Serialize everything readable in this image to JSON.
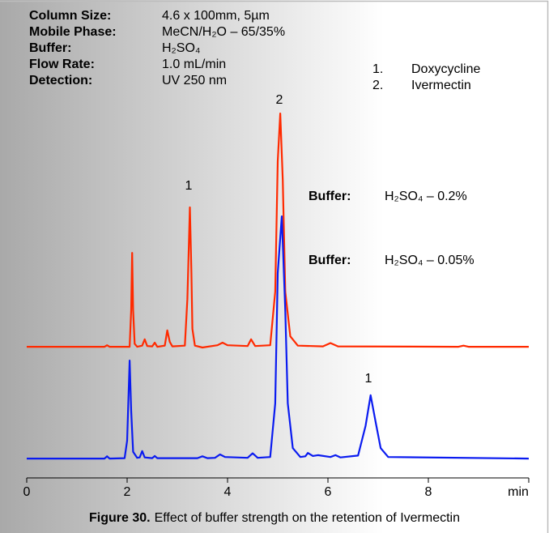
{
  "chart_data": {
    "type": "line",
    "conditions": [
      {
        "label": "Column Size:",
        "value": "4.6 x 100mm, 5µm"
      },
      {
        "label": "Mobile Phase:",
        "value": "MeCN/H₂O – 65/35%"
      },
      {
        "label": "Buffer:",
        "value": "H₂SO₄"
      },
      {
        "label": "Flow Rate:",
        "value": "1.0 mL/min"
      },
      {
        "label": "Detection:",
        "value": "UV 250 nm"
      }
    ],
    "peaks": [
      {
        "number": "1.",
        "name": "Doxycycline"
      },
      {
        "number": "2.",
        "name": "Ivermectin"
      }
    ],
    "peak_labels": [
      "1",
      "2",
      "1"
    ],
    "legend_title": "Buffer:",
    "x_label": "min",
    "xlim": [
      0,
      10
    ],
    "xticks": [
      0,
      2,
      4,
      6,
      8
    ],
    "ylim": [
      0,
      100
    ],
    "series": [
      {
        "name": "H₂SO₄ – 0.2%",
        "color": "#ff2a00",
        "x": [
          0,
          1.55,
          1.6,
          1.65,
          2.05,
          2.08,
          2.1,
          2.12,
          2.15,
          2.2,
          2.3,
          2.35,
          2.4,
          2.5,
          2.55,
          2.6,
          2.75,
          2.8,
          2.85,
          2.9,
          3.15,
          3.2,
          3.25,
          3.28,
          3.3,
          3.35,
          3.5,
          3.8,
          3.9,
          4.0,
          4.4,
          4.47,
          4.55,
          4.85,
          4.95,
          5.0,
          5.05,
          5.1,
          5.15,
          5.25,
          5.4,
          5.9,
          6.05,
          6.2,
          8.6,
          8.7,
          8.8,
          10
        ],
        "values": [
          35.2,
          35.2,
          35.6,
          35.2,
          35.2,
          45,
          60.4,
          45,
          36,
          35.2,
          35.5,
          37.2,
          35.4,
          35.3,
          36.3,
          35.2,
          35.5,
          39.6,
          36.5,
          35.3,
          35.5,
          48,
          72.6,
          55,
          40,
          35.5,
          35.0,
          35.6,
          36.3,
          35.6,
          35.4,
          37.2,
          35.4,
          35.6,
          50,
          85,
          97.8,
          80,
          50,
          38,
          35.5,
          35.3,
          36.2,
          35.3,
          35.2,
          35.5,
          35.2,
          35.2
        ]
      },
      {
        "name": "H₂SO₄ – 0.05%",
        "color": "#0a1bf0",
        "x": [
          0,
          1.55,
          1.6,
          1.65,
          1.95,
          2.0,
          2.05,
          2.08,
          2.12,
          2.2,
          2.25,
          2.3,
          2.35,
          2.5,
          2.55,
          2.6,
          3.4,
          3.5,
          3.6,
          3.75,
          3.85,
          3.95,
          4.4,
          4.5,
          4.6,
          4.85,
          4.95,
          5.0,
          5.08,
          5.15,
          5.2,
          5.3,
          5.45,
          5.55,
          5.6,
          5.7,
          5.8,
          6.05,
          6.15,
          6.25,
          6.6,
          6.75,
          6.85,
          6.95,
          7.05,
          7.2,
          10
        ],
        "values": [
          5.2,
          5.2,
          5.8,
          5.2,
          5.3,
          10,
          31.5,
          18,
          7,
          5.4,
          5.5,
          7.2,
          5.5,
          5.3,
          5.9,
          5.3,
          5.3,
          5.8,
          5.3,
          5.4,
          6.3,
          5.6,
          5.4,
          6.6,
          5.4,
          5.6,
          20,
          55,
          70.2,
          45,
          20,
          8,
          5.6,
          5.8,
          6.7,
          5.9,
          6.1,
          5.6,
          6.1,
          5.5,
          6,
          14,
          22.2,
          15,
          8,
          5.6,
          5.2
        ]
      }
    ],
    "caption": {
      "label": "Figure 30.",
      "text": "Effect of buffer strength on the retention of Ivermectin"
    }
  }
}
